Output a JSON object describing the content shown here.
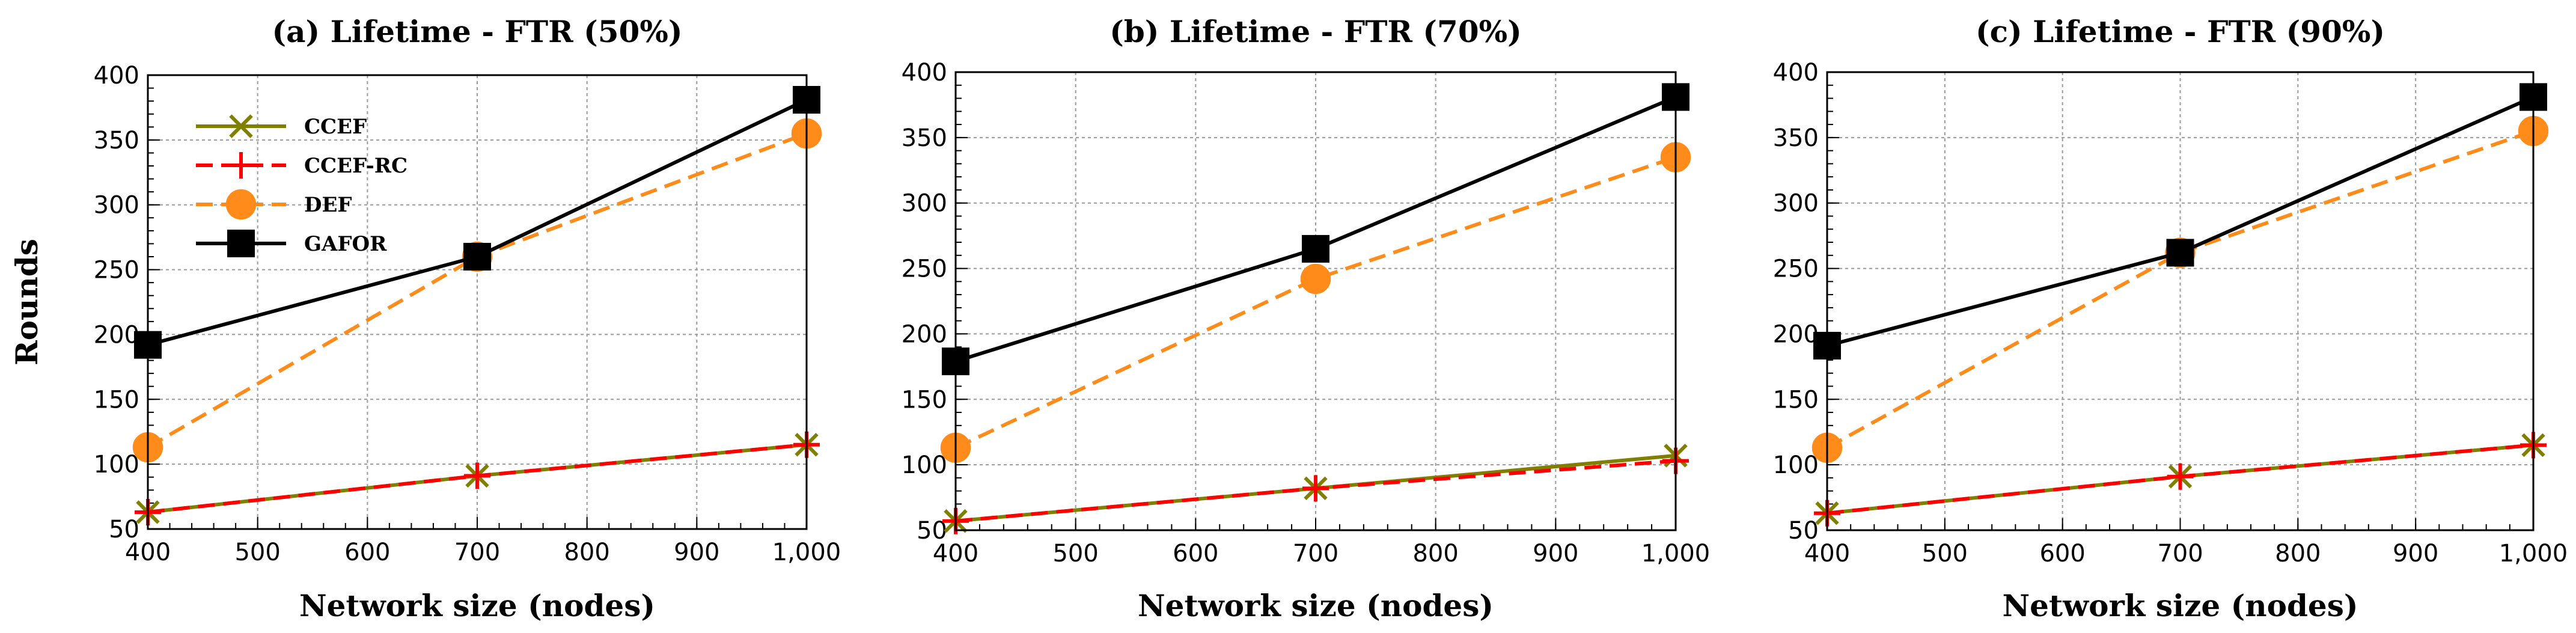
{
  "chart_data": [
    {
      "type": "line",
      "title": "(a) Lifetime - FTR (50%)",
      "xlabel": "Network size (nodes)",
      "ylabel": "Rounds",
      "x": [
        400,
        700,
        1000
      ],
      "xlim": [
        400,
        1000
      ],
      "ylim": [
        50,
        400
      ],
      "xticks": [
        400,
        500,
        600,
        700,
        800,
        900,
        1000
      ],
      "xtick_labels": [
        "400",
        "500",
        "600",
        "700",
        "800",
        "900",
        "1,000"
      ],
      "yticks": [
        50,
        100,
        150,
        200,
        250,
        300,
        350,
        400
      ],
      "grid": true,
      "legend_position": "top-left",
      "series": [
        {
          "name": "CCEF",
          "values": [
            63,
            91,
            115
          ]
        },
        {
          "name": "CCEF-RC",
          "values": [
            63,
            91,
            115
          ]
        },
        {
          "name": "DEF",
          "values": [
            113,
            260,
            355
          ]
        },
        {
          "name": "GAFOR",
          "values": [
            192,
            260,
            381
          ]
        }
      ]
    },
    {
      "type": "line",
      "title": "(b) Lifetime - FTR (70%)",
      "xlabel": "Network size (nodes)",
      "ylabel": "",
      "x": [
        400,
        700,
        1000
      ],
      "xlim": [
        400,
        1000
      ],
      "ylim": [
        50,
        400
      ],
      "xticks": [
        400,
        500,
        600,
        700,
        800,
        900,
        1000
      ],
      "xtick_labels": [
        "400",
        "500",
        "600",
        "700",
        "800",
        "900",
        "1,000"
      ],
      "yticks": [
        50,
        100,
        150,
        200,
        250,
        300,
        350,
        400
      ],
      "grid": true,
      "series": [
        {
          "name": "CCEF",
          "values": [
            57,
            82,
            107
          ]
        },
        {
          "name": "CCEF-RC",
          "values": [
            57,
            82,
            103
          ]
        },
        {
          "name": "DEF",
          "values": [
            113,
            242,
            335
          ]
        },
        {
          "name": "GAFOR",
          "values": [
            179,
            265,
            381
          ]
        }
      ]
    },
    {
      "type": "line",
      "title": "(c) Lifetime - FTR (90%)",
      "xlabel": "Network size (nodes)",
      "ylabel": "",
      "x": [
        400,
        700,
        1000
      ],
      "xlim": [
        400,
        1000
      ],
      "ylim": [
        50,
        400
      ],
      "xticks": [
        400,
        500,
        600,
        700,
        800,
        900,
        1000
      ],
      "xtick_labels": [
        "400",
        "500",
        "600",
        "700",
        "800",
        "900",
        "1,000"
      ],
      "yticks": [
        50,
        100,
        150,
        200,
        250,
        300,
        350,
        400
      ],
      "grid": true,
      "series": [
        {
          "name": "CCEF",
          "values": [
            63,
            91,
            115
          ]
        },
        {
          "name": "CCEF-RC",
          "values": [
            63,
            91,
            115
          ]
        },
        {
          "name": "DEF",
          "values": [
            113,
            262,
            355
          ]
        },
        {
          "name": "GAFOR",
          "values": [
            191,
            262,
            381
          ]
        }
      ]
    }
  ],
  "series_styles": {
    "CCEF": {
      "color": "#808000",
      "marker": "x-marker",
      "dash": "solid"
    },
    "CCEF-RC": {
      "color": "#ff0000",
      "marker": "plus-marker",
      "dash": "dashed"
    },
    "DEF": {
      "color": "#ff8c1a",
      "marker": "circle-marker",
      "dash": "dashed"
    },
    "GAFOR": {
      "color": "#000000",
      "marker": "square-marker",
      "dash": "solid"
    }
  }
}
